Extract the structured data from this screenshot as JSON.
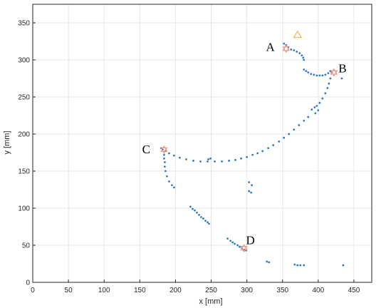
{
  "chart_data": {
    "type": "scatter",
    "title": "",
    "xlabel": "x [mm]",
    "ylabel": "y [mm]",
    "xlim": [
      0,
      475
    ],
    "ylim": [
      0,
      375
    ],
    "xticks": [
      0,
      50,
      100,
      150,
      200,
      250,
      300,
      350,
      400,
      450
    ],
    "yticks": [
      0,
      50,
      100,
      150,
      200,
      250,
      300,
      350
    ],
    "grid": true,
    "colors": {
      "points": "#2f7bbf",
      "markers": "#f08c7a",
      "triangle": "#f5b84a"
    },
    "series": [
      {
        "marker": "dot",
        "points": [
          [
            352,
            322
          ],
          [
            355,
            320
          ],
          [
            358,
            317
          ],
          [
            362,
            314
          ],
          [
            366,
            313
          ],
          [
            370,
            311
          ],
          [
            374,
            309
          ],
          [
            377,
            306
          ],
          [
            379,
            303
          ],
          [
            380,
            300
          ],
          [
            380,
            287
          ],
          [
            383,
            285
          ],
          [
            386,
            283
          ],
          [
            390,
            281
          ],
          [
            394,
            280
          ],
          [
            398,
            279
          ],
          [
            402,
            279
          ],
          [
            406,
            279
          ],
          [
            410,
            280
          ],
          [
            414,
            282
          ],
          [
            417,
            285
          ],
          [
            419,
            283
          ],
          [
            417,
            275
          ],
          [
            415,
            268
          ],
          [
            413,
            262
          ],
          [
            410,
            255
          ],
          [
            406,
            248
          ],
          [
            402,
            242
          ],
          [
            398,
            238
          ],
          [
            395,
            236
          ],
          [
            391,
            233
          ],
          [
            396,
            228
          ],
          [
            400,
            232
          ],
          [
            386,
            223
          ],
          [
            380,
            218
          ],
          [
            373,
            212
          ],
          [
            366,
            206
          ],
          [
            359,
            200
          ],
          [
            352,
            195
          ],
          [
            345,
            190
          ],
          [
            337,
            185
          ],
          [
            330,
            181
          ],
          [
            322,
            177
          ],
          [
            315,
            174
          ],
          [
            308,
            172
          ],
          [
            300,
            169
          ],
          [
            292,
            167
          ],
          [
            284,
            165
          ],
          [
            275,
            164
          ],
          [
            265,
            163
          ],
          [
            255,
            163
          ],
          [
            245,
            163
          ],
          [
            235,
            163
          ],
          [
            225,
            164
          ],
          [
            215,
            166
          ],
          [
            206,
            168
          ],
          [
            198,
            171
          ],
          [
            191,
            174
          ],
          [
            186,
            177
          ],
          [
            182,
            179
          ],
          [
            180,
            181
          ],
          [
            246,
            166
          ],
          [
            249,
            167
          ],
          [
            184,
            172
          ],
          [
            184,
            167
          ],
          [
            185,
            162
          ],
          [
            185,
            156
          ],
          [
            186,
            150
          ],
          [
            188,
            143
          ],
          [
            191,
            136
          ],
          [
            195,
            131
          ],
          [
            198,
            128
          ],
          [
            221,
            102
          ],
          [
            224,
            99
          ],
          [
            227,
            97
          ],
          [
            230,
            94
          ],
          [
            233,
            91
          ],
          [
            236,
            88
          ],
          [
            239,
            86
          ],
          [
            242,
            83
          ],
          [
            245,
            81
          ],
          [
            247,
            79
          ],
          [
            303,
            135
          ],
          [
            307,
            131
          ],
          [
            303,
            123
          ],
          [
            306,
            121
          ],
          [
            273,
            59
          ],
          [
            277,
            56
          ],
          [
            280,
            54
          ],
          [
            283,
            52
          ],
          [
            287,
            50
          ],
          [
            290,
            48
          ],
          [
            293,
            46
          ],
          [
            296,
            44
          ],
          [
            299,
            43
          ],
          [
            328,
            28
          ],
          [
            331,
            27
          ],
          [
            367,
            24
          ],
          [
            371,
            23
          ],
          [
            375,
            23
          ],
          [
            380,
            23
          ],
          [
            435,
            23
          ],
          [
            433,
            275
          ]
        ]
      },
      {
        "marker": "hexagram",
        "points": [
          [
            355,
            315
          ],
          [
            422,
            283
          ],
          [
            184,
            179
          ],
          [
            296,
            46
          ]
        ]
      },
      {
        "marker": "triangle",
        "points": [
          [
            371,
            333
          ]
        ]
      }
    ],
    "annotations": [
      {
        "text": "A",
        "x": 333,
        "y": 318
      },
      {
        "text": "B",
        "x": 434,
        "y": 289
      },
      {
        "text": "C",
        "x": 159,
        "y": 180
      },
      {
        "text": "D",
        "x": 305,
        "y": 57
      }
    ]
  }
}
